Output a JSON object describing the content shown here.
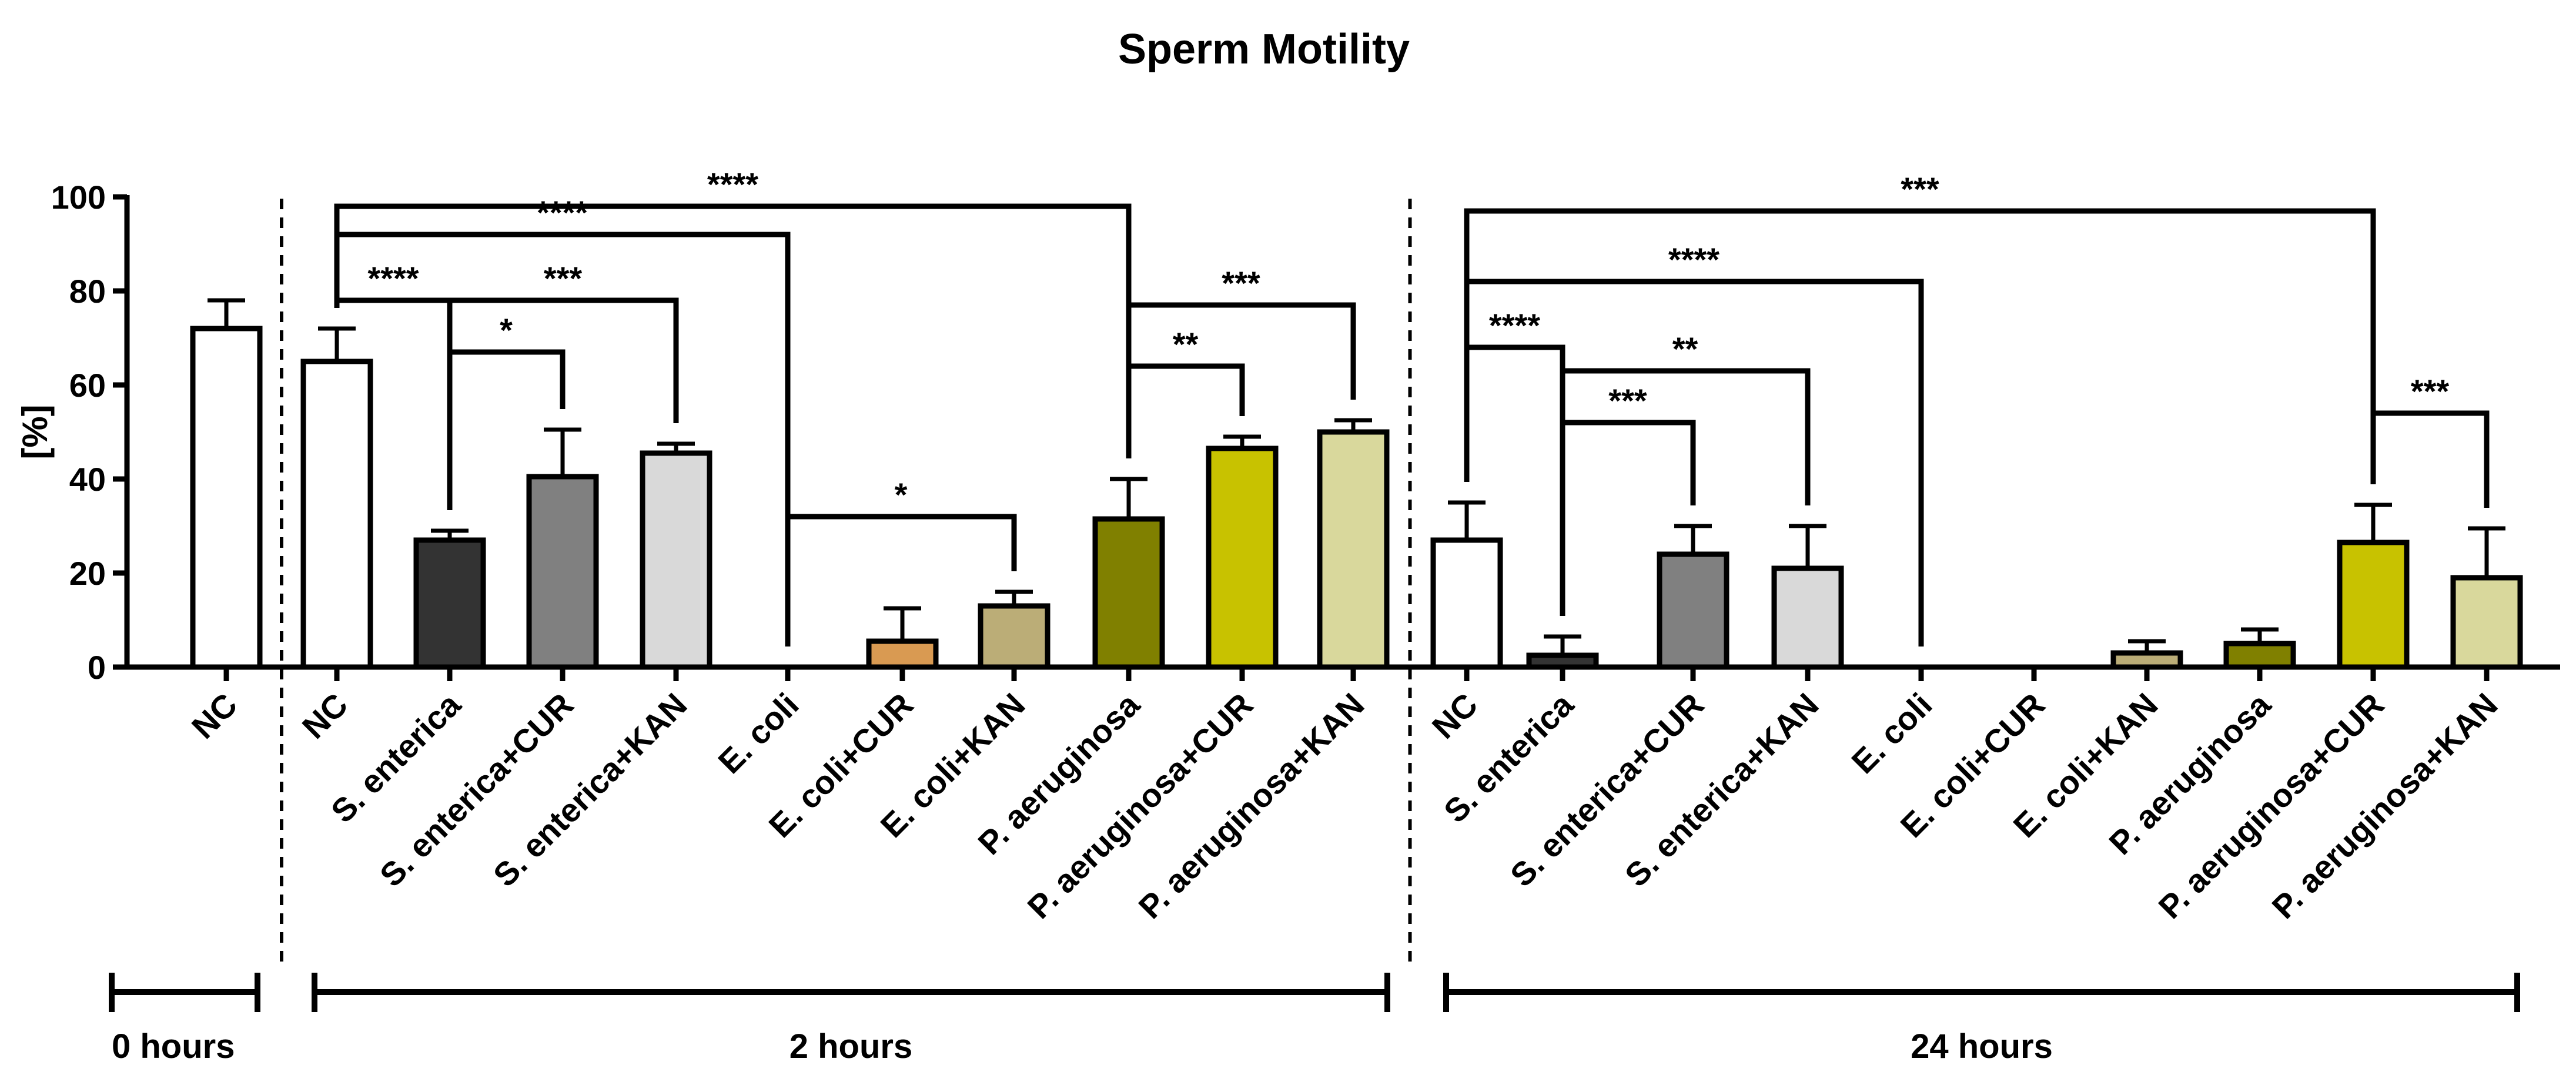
{
  "chart_data": {
    "type": "bar",
    "title": "Sperm Motility",
    "ylabel": "[%]",
    "ylim": [
      0,
      100
    ],
    "yticks": [
      0,
      20,
      40,
      60,
      80,
      100
    ],
    "yticks_labels": [
      "0",
      "20",
      "40",
      "60",
      "80",
      "100"
    ],
    "bars": [
      {
        "label": "NC",
        "group": "0 hours",
        "value": 72,
        "error": 6,
        "color": "#ffffff"
      },
      {
        "label": "NC",
        "group": "2 hours",
        "value": 65,
        "error": 7,
        "color": "#ffffff"
      },
      {
        "label": "S. enterica",
        "group": "2 hours",
        "value": 27,
        "error": 2,
        "color": "#333333"
      },
      {
        "label": "S. enterica+CUR",
        "group": "2 hours",
        "value": 40.5,
        "error": 10,
        "color": "#808080"
      },
      {
        "label": "S. enterica+KAN",
        "group": "2 hours",
        "value": 45.5,
        "error": 2,
        "color": "#d9d9d9"
      },
      {
        "label": "E. coli",
        "group": "2 hours",
        "value": 0,
        "error": 0,
        "color": "#ffffff"
      },
      {
        "label": "E. coli+CUR",
        "group": "2 hours",
        "value": 5.5,
        "error": 7,
        "color": "#d99a52"
      },
      {
        "label": "E. coli+KAN",
        "group": "2 hours",
        "value": 13,
        "error": 3,
        "color": "#bbad77"
      },
      {
        "label": "P. aeruginosa",
        "group": "2 hours",
        "value": 31.5,
        "error": 8.5,
        "color": "#808000"
      },
      {
        "label": "P. aeruginosa+CUR",
        "group": "2 hours",
        "value": 46.5,
        "error": 2.5,
        "color": "#c8c200"
      },
      {
        "label": "P. aeruginosa+KAN",
        "group": "2 hours",
        "value": 50,
        "error": 2.5,
        "color": "#d9d89c"
      },
      {
        "label": "NC",
        "group": "24 hours",
        "value": 27,
        "error": 8,
        "color": "#ffffff"
      },
      {
        "label": "S. enterica",
        "group": "24 hours",
        "value": 2.5,
        "error": 4,
        "color": "#333333"
      },
      {
        "label": "S. enterica+CUR",
        "group": "24 hours",
        "value": 24,
        "error": 6,
        "color": "#808080"
      },
      {
        "label": "S. enterica+KAN",
        "group": "24 hours",
        "value": 21,
        "error": 9,
        "color": "#d9d9d9"
      },
      {
        "label": "E. coli",
        "group": "24 hours",
        "value": 0,
        "error": 0,
        "color": "#ffffff"
      },
      {
        "label": "E. coli+CUR",
        "group": "24 hours",
        "value": 0,
        "error": 0,
        "color": "#d99a52"
      },
      {
        "label": "E. coli+KAN",
        "group": "24 hours",
        "value": 3,
        "error": 2.5,
        "color": "#bbad77"
      },
      {
        "label": "P. aeruginosa",
        "group": "24 hours",
        "value": 5,
        "error": 3,
        "color": "#808000"
      },
      {
        "label": "P. aeruginosa+CUR",
        "group": "24 hours",
        "value": 26.5,
        "error": 8,
        "color": "#c8c200"
      },
      {
        "label": "P. aeruginosa+KAN",
        "group": "24 hours",
        "value": 19,
        "error": 10.5,
        "color": "#d9d89c"
      }
    ],
    "groups": [
      {
        "label": "0 hours",
        "first": 0,
        "last": 0
      },
      {
        "label": "2 hours",
        "first": 1,
        "last": 10
      },
      {
        "label": "24 hours",
        "first": 11,
        "last": 20
      }
    ],
    "group_separators_after": [
      0,
      10
    ],
    "significance": [
      {
        "from": 1,
        "to": 8,
        "y": 98,
        "label": "****"
      },
      {
        "from": 1,
        "to": 5,
        "y": 92,
        "label": "****"
      },
      {
        "from": 1,
        "to": 2,
        "y": 78,
        "label": "****"
      },
      {
        "from": 2,
        "to": 4,
        "y": 78,
        "label": "***"
      },
      {
        "from": 2,
        "to": 3,
        "y": 67,
        "label": "*"
      },
      {
        "from": 5,
        "to": 7,
        "y": 32,
        "label": "*"
      },
      {
        "from": 8,
        "to": 10,
        "y": 77,
        "label": "***"
      },
      {
        "from": 8,
        "to": 9,
        "y": 64,
        "label": "**"
      },
      {
        "from": 11,
        "to": 19,
        "y": 97,
        "label": "***"
      },
      {
        "from": 11,
        "to": 15,
        "y": 82,
        "label": "****"
      },
      {
        "from": 11,
        "to": 12,
        "y": 68,
        "label": "****"
      },
      {
        "from": 12,
        "to": 14,
        "y": 63,
        "label": "**"
      },
      {
        "from": 12,
        "to": 13,
        "y": 52,
        "label": "***"
      },
      {
        "from": 19,
        "to": 20,
        "y": 54,
        "label": "***"
      }
    ]
  }
}
